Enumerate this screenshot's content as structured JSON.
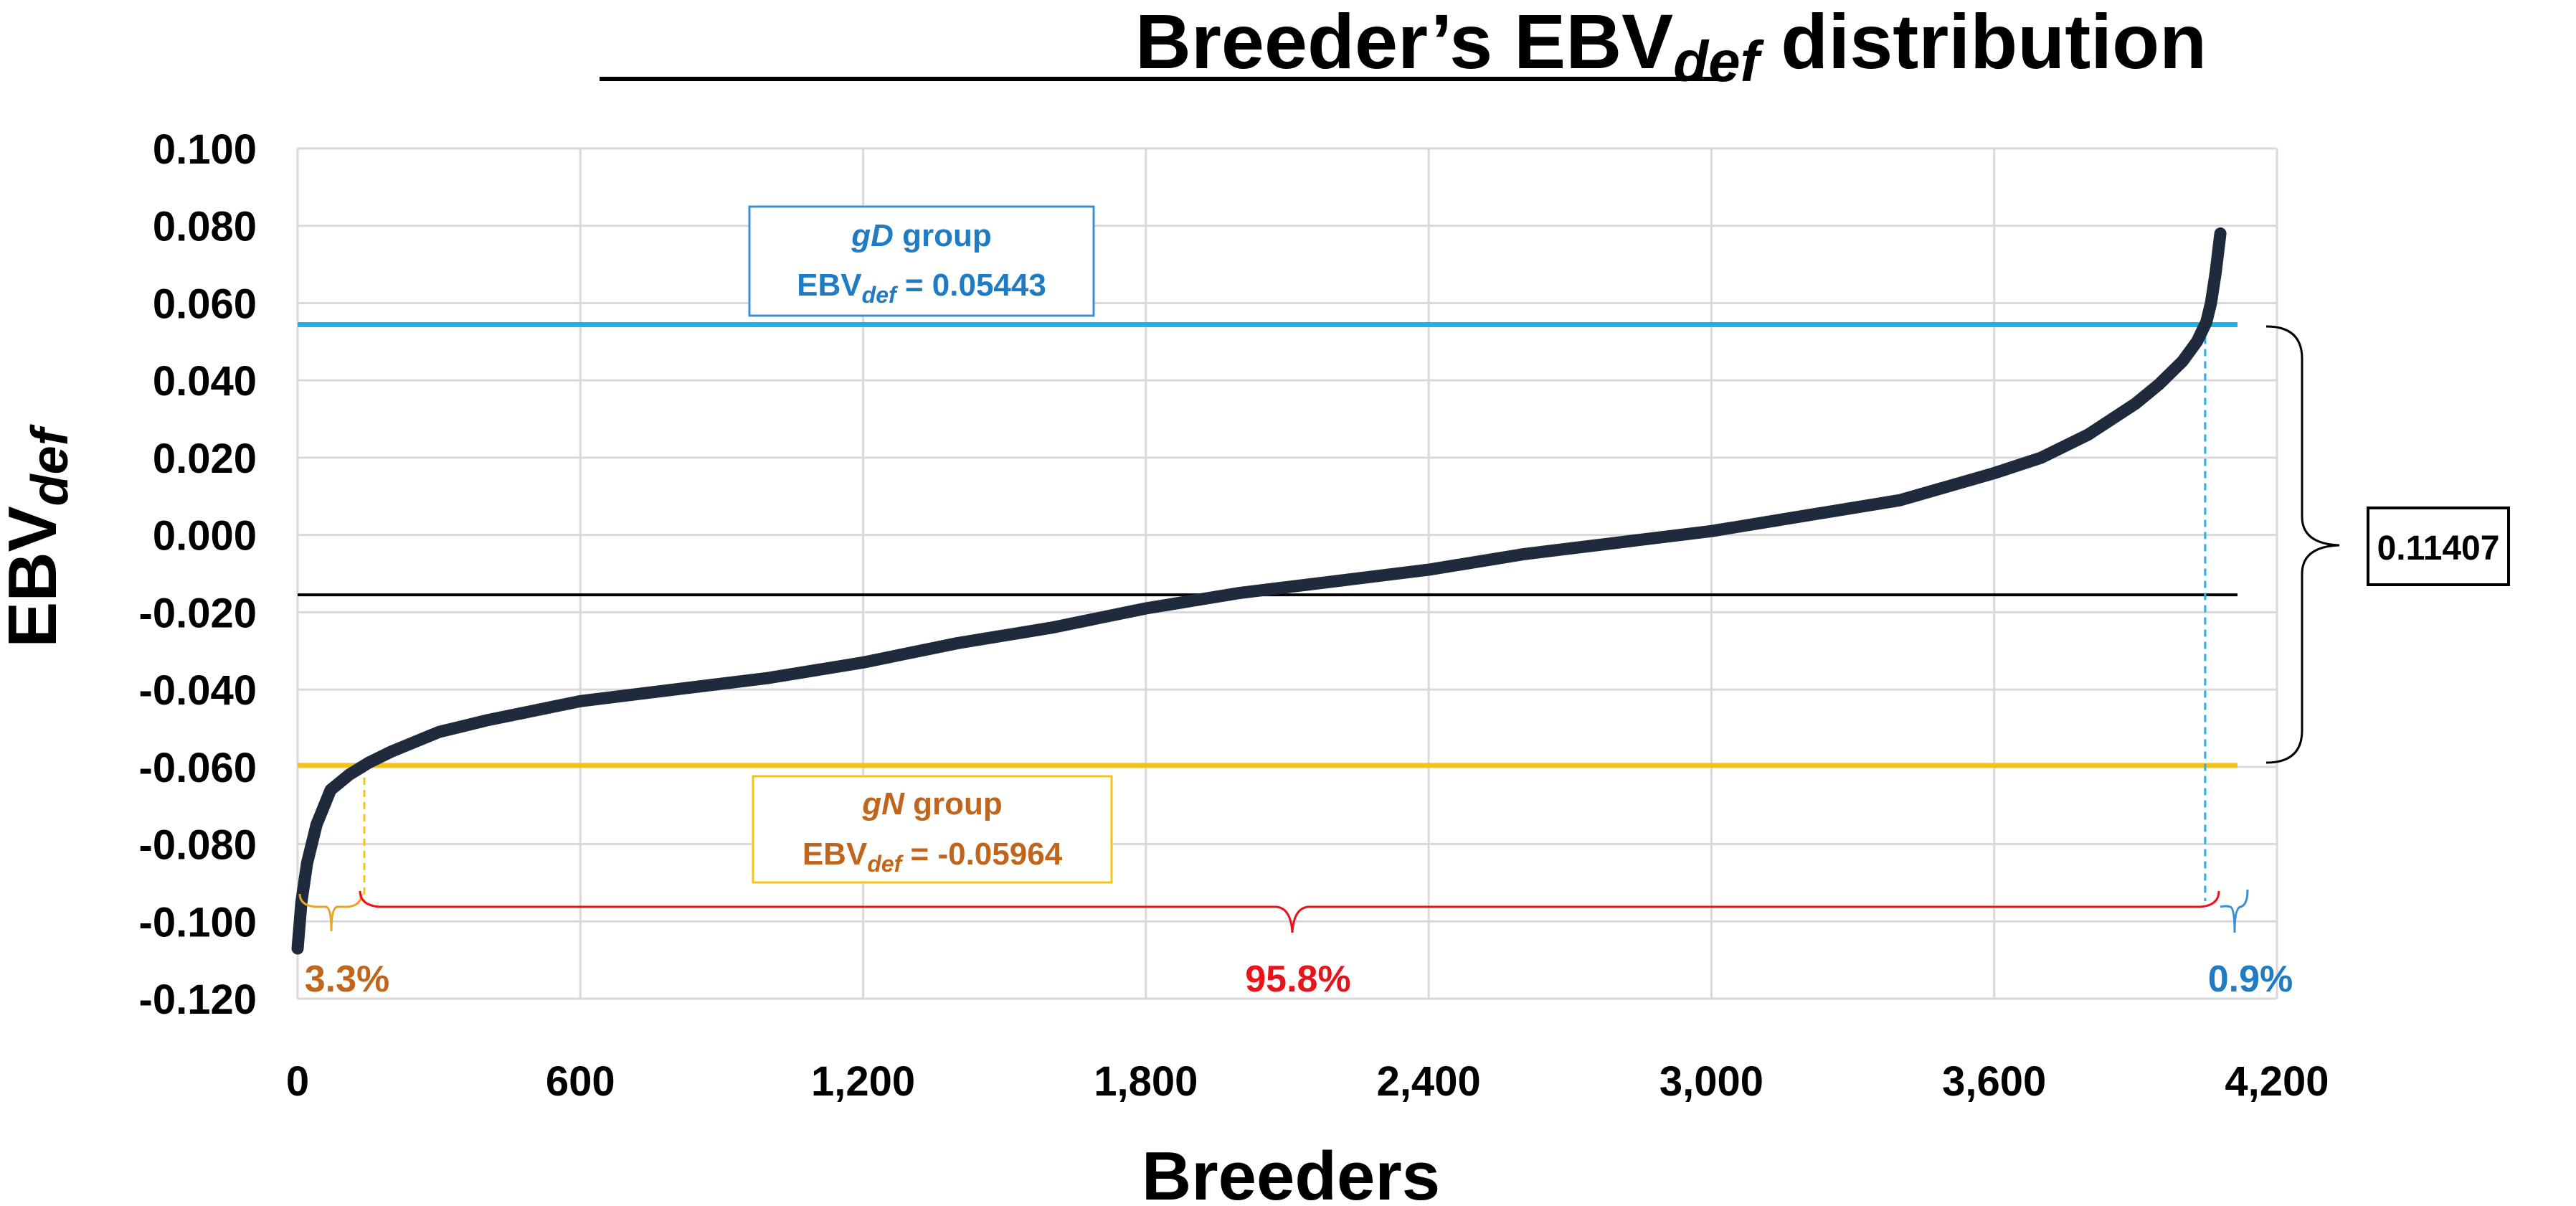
{
  "colors": {
    "curve": "#1f2a3c",
    "gd_line": "#1fb1e8",
    "gn_line": "#f5c218",
    "mean_line": "#000000",
    "grid": "#d9d9d9",
    "gd_text": "#1f7bc4",
    "gn_text": "#c0651b",
    "mid_pct": "#e8141c",
    "bracket_red": "#e8141c",
    "bracket_orange": "#e8a428",
    "bracket_blue": "#3a8fd0"
  },
  "chart_data": {
    "type": "line",
    "title": "Breeder’s EBV",
    "title_sub": "def",
    "title_tail": " distribution",
    "xlabel": "Breeders",
    "ylabel": "EBV",
    "ylabel_sub": "def",
    "xlim": [
      0,
      4200
    ],
    "ylim": [
      -0.12,
      0.1
    ],
    "xticks": [
      0,
      600,
      1200,
      1800,
      2400,
      3000,
      3600,
      4200
    ],
    "xtick_labels": [
      "0",
      "600",
      "1,200",
      "1,800",
      "2,400",
      "3,000",
      "3,600",
      "4,200"
    ],
    "yticks": [
      0.1,
      0.08,
      0.06,
      0.04,
      0.02,
      0.0,
      -0.02,
      -0.04,
      -0.06,
      -0.08,
      -0.1,
      -0.12
    ],
    "ytick_labels": [
      "0.100",
      "0.080",
      "0.060",
      "0.040",
      "0.020",
      "0.000",
      "-0.020",
      "-0.040",
      "-0.060",
      "-0.080",
      "-0.100",
      "-0.120"
    ],
    "grid": true,
    "series": [
      {
        "x": [
          0,
          8,
          20,
          40,
          70,
          110,
          150,
          200,
          300,
          400,
          600,
          800,
          1000,
          1200,
          1400,
          1600,
          1800,
          2000,
          2200,
          2400,
          2600,
          2800,
          3000,
          3200,
          3400,
          3600,
          3700,
          3800,
          3900,
          3950,
          4000,
          4030,
          4050,
          4060,
          4070,
          4080
        ],
        "y": [
          -0.107,
          -0.095,
          -0.085,
          -0.075,
          -0.066,
          -0.062,
          -0.059,
          -0.056,
          -0.051,
          -0.048,
          -0.043,
          -0.04,
          -0.037,
          -0.033,
          -0.028,
          -0.024,
          -0.019,
          -0.015,
          -0.012,
          -0.009,
          -0.005,
          -0.002,
          0.001,
          0.005,
          0.009,
          0.016,
          0.02,
          0.026,
          0.034,
          0.039,
          0.045,
          0.05,
          0.055,
          0.06,
          0.068,
          0.078
        ]
      }
    ],
    "reference_lines": [
      {
        "group": "gD",
        "value": 0.05443
      },
      {
        "group": "mean",
        "value": -0.0155
      },
      {
        "group": "gN",
        "value": -0.05964
      }
    ],
    "annotations": {
      "gd_box": {
        "group_name": "gD",
        "group_word": " group",
        "label": "EBV",
        "label_sub": "def",
        "equals": " =  0.05443"
      },
      "gn_box": {
        "group_name": "gN",
        "group_word": " group",
        "label": "EBV",
        "label_sub": "def",
        "equals": " =  -0.05964"
      },
      "range_value": "0.11407",
      "pct_low": "3.3%",
      "pct_mid": "95.8%",
      "pct_high": "0.9%"
    }
  }
}
